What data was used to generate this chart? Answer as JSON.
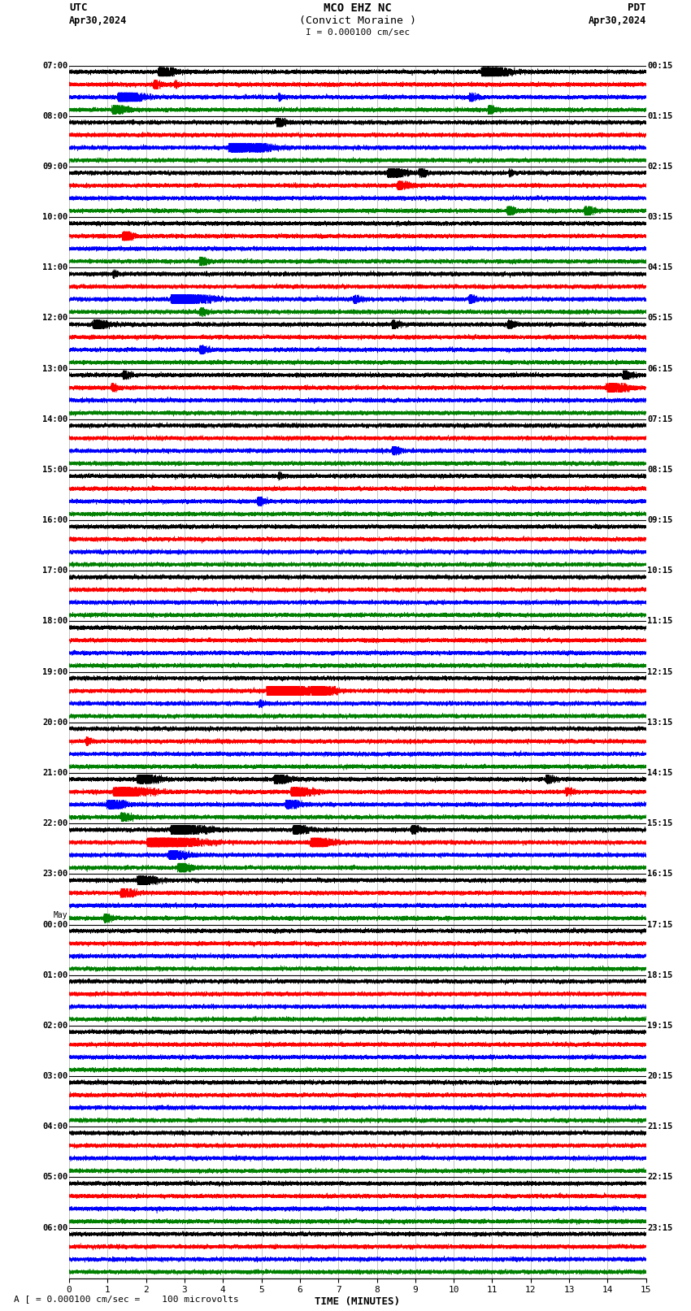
{
  "title_line1": "MCO EHZ NC",
  "title_line2": "(Convict Moraine )",
  "scale_label": "I = 0.000100 cm/sec",
  "left_header": "UTC",
  "left_date": "Apr30,2024",
  "right_header": "PDT",
  "right_date": "Apr30,2024",
  "footer_note": "A [ = 0.000100 cm/sec =    100 microvolts",
  "xlabel": "TIME (MINUTES)",
  "x_ticks": [
    0,
    1,
    2,
    3,
    4,
    5,
    6,
    7,
    8,
    9,
    10,
    11,
    12,
    13,
    14,
    15
  ],
  "colors": [
    "black",
    "red",
    "blue",
    "green"
  ],
  "left_labels": [
    "07:00",
    "08:00",
    "09:00",
    "10:00",
    "11:00",
    "12:00",
    "13:00",
    "14:00",
    "15:00",
    "16:00",
    "17:00",
    "18:00",
    "19:00",
    "20:00",
    "21:00",
    "22:00",
    "23:00",
    "00:00",
    "01:00",
    "02:00",
    "03:00",
    "04:00",
    "05:00",
    "06:00"
  ],
  "right_labels": [
    "00:15",
    "01:15",
    "02:15",
    "03:15",
    "04:15",
    "05:15",
    "06:15",
    "07:15",
    "08:15",
    "09:15",
    "10:15",
    "11:15",
    "12:15",
    "13:15",
    "14:15",
    "15:15",
    "16:15",
    "17:15",
    "18:15",
    "19:15",
    "20:15",
    "21:15",
    "22:15",
    "23:15"
  ],
  "may_row": 17,
  "n_rows": 24,
  "traces_per_row": 4,
  "fig_width": 8.5,
  "fig_height": 16.13,
  "bg_color": "white",
  "grid_color": "#999999",
  "label_fontsize": 7.5,
  "title_fontsize": 10,
  "xlabel_fontsize": 9
}
